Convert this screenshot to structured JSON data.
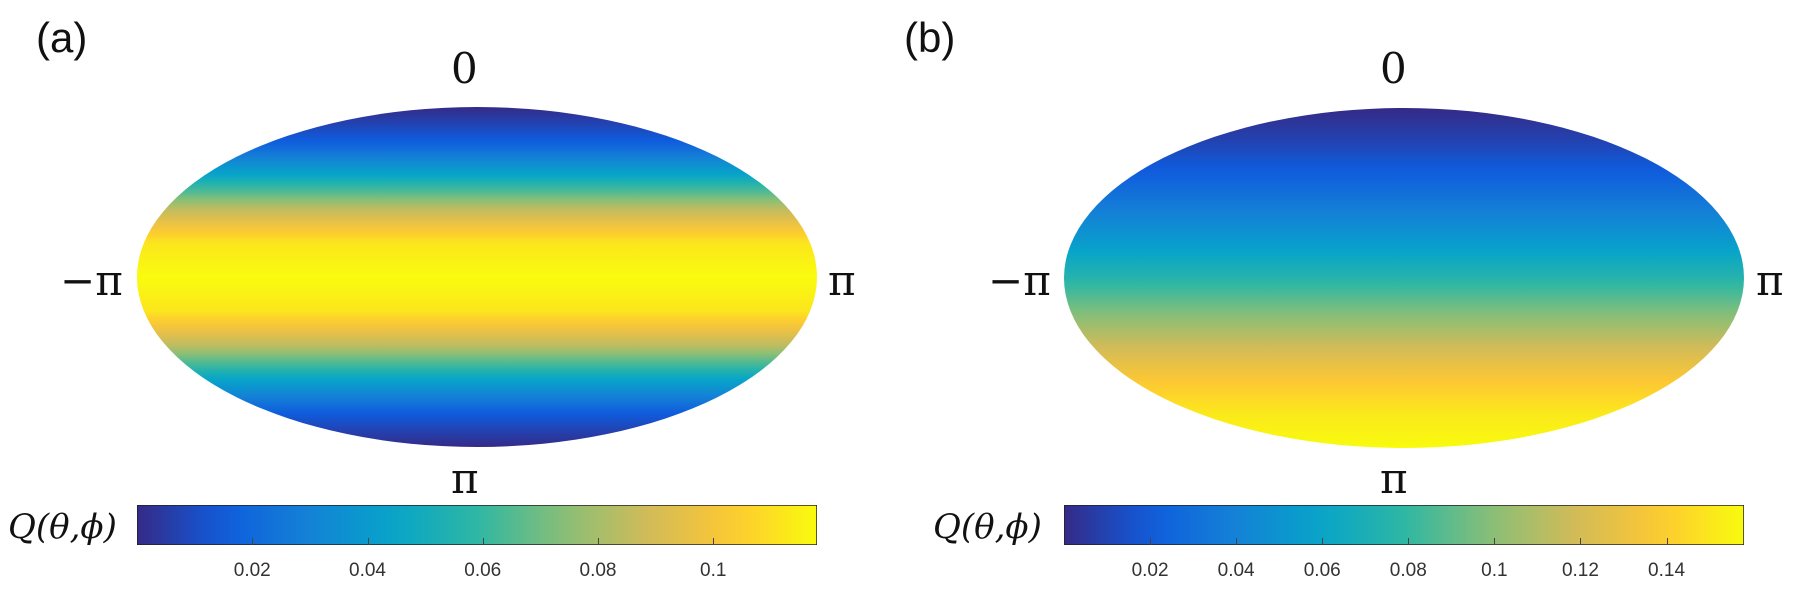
{
  "chart_data": [
    {
      "type": "heatmap",
      "panel_label": "(a)",
      "projection": "ellipse (theta vertical, phi horizontal)",
      "top_label": "0",
      "bottom_label": "π",
      "left_label": "−π",
      "right_label": "π",
      "colorbar_label": "Q(θ,ϕ)",
      "colorbar_range": [
        0.0,
        0.118
      ],
      "colorbar_ticks": [
        "0.02",
        "0.04",
        "0.06",
        "0.08",
        "0.1"
      ],
      "colorbar_tick_values": [
        0.02,
        0.04,
        0.06,
        0.08,
        0.1
      ],
      "theta_profile": {
        "theta_fraction": [
          0.0,
          0.1,
          0.2,
          0.3,
          0.4,
          0.5,
          0.6,
          0.7,
          0.8,
          0.9,
          1.0
        ],
        "values": [
          0.0,
          0.015,
          0.045,
          0.085,
          0.112,
          0.118,
          0.112,
          0.085,
          0.045,
          0.015,
          0.0
        ]
      }
    },
    {
      "type": "heatmap",
      "panel_label": "(b)",
      "projection": "ellipse (theta vertical, phi horizontal)",
      "top_label": "0",
      "bottom_label": "π",
      "left_label": "−π",
      "right_label": "π",
      "colorbar_label": "Q(θ,ϕ)",
      "colorbar_range": [
        0.0,
        0.158
      ],
      "colorbar_ticks": [
        "0.02",
        "0.04",
        "0.06",
        "0.08",
        "0.1",
        "0.12",
        "0.14"
      ],
      "colorbar_tick_values": [
        0.02,
        0.04,
        0.06,
        0.08,
        0.1,
        0.12,
        0.14
      ],
      "theta_profile": {
        "theta_fraction": [
          0.0,
          0.1,
          0.2,
          0.3,
          0.4,
          0.5,
          0.6,
          0.7,
          0.8,
          0.9,
          1.0
        ],
        "values": [
          0.0,
          0.01,
          0.022,
          0.038,
          0.055,
          0.075,
          0.097,
          0.118,
          0.137,
          0.151,
          0.158
        ]
      }
    }
  ],
  "colormap": "parula",
  "colormap_stops": [
    "#352a87",
    "#0f5cdd",
    "#1481d6",
    "#06a4ca",
    "#2eb7a4",
    "#87bf77",
    "#d1bb59",
    "#fec832",
    "#f9fb0e"
  ]
}
